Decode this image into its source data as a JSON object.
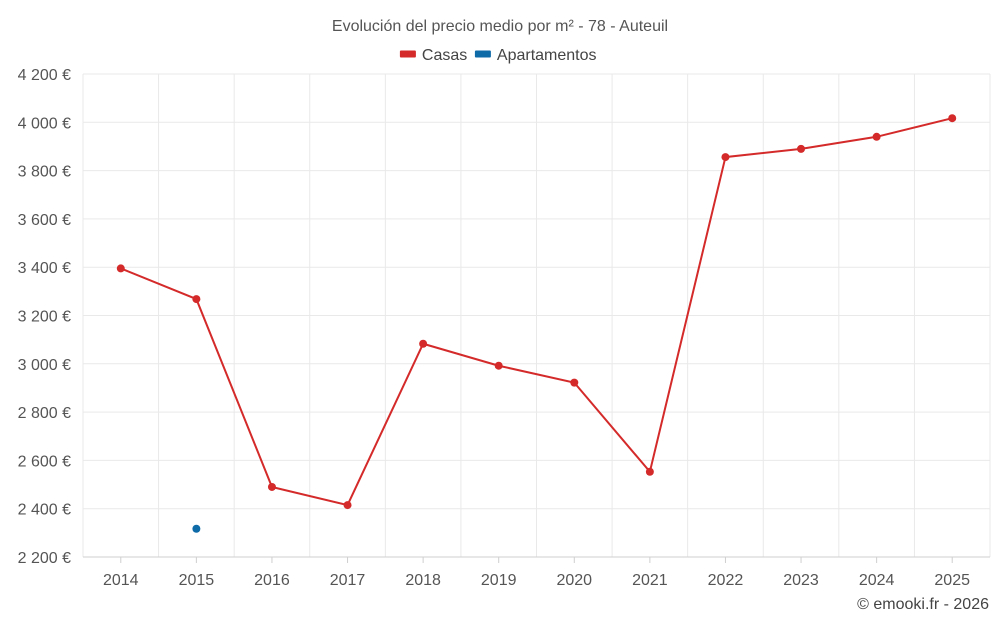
{
  "chart_data": {
    "type": "line",
    "title": "Evolución del precio medio por m² - 78 - Auteuil",
    "x": [
      "2014",
      "2015",
      "2016",
      "2017",
      "2018",
      "2019",
      "2020",
      "2021",
      "2022",
      "2023",
      "2024",
      "2025"
    ],
    "ylim": [
      2200,
      4200
    ],
    "yticks": [
      {
        "value": 2200,
        "label": "2 200 €"
      },
      {
        "value": 2400,
        "label": "2 400 €"
      },
      {
        "value": 2600,
        "label": "2 600 €"
      },
      {
        "value": 2800,
        "label": "2 800 €"
      },
      {
        "value": 3000,
        "label": "3 000 €"
      },
      {
        "value": 3200,
        "label": "3 200 €"
      },
      {
        "value": 3400,
        "label": "3 400 €"
      },
      {
        "value": 3600,
        "label": "3 600 €"
      },
      {
        "value": 3800,
        "label": "3 800 €"
      },
      {
        "value": 4000,
        "label": "4 000 €"
      },
      {
        "value": 4200,
        "label": "4 200 €"
      }
    ],
    "grid": true,
    "legend_position": "top-center",
    "series": [
      {
        "name": "Casas",
        "color": "#d42a2a",
        "values": [
          3395,
          3268,
          2490,
          2415,
          3083,
          2992,
          2922,
          2553,
          3856,
          3890,
          3940,
          4017
        ]
      },
      {
        "name": "Apartamentos",
        "color": "#0f6aa8",
        "values": [
          null,
          2317,
          null,
          null,
          null,
          null,
          null,
          null,
          null,
          null,
          null,
          null
        ]
      }
    ],
    "credit": "© emooki.fr - 2026"
  }
}
